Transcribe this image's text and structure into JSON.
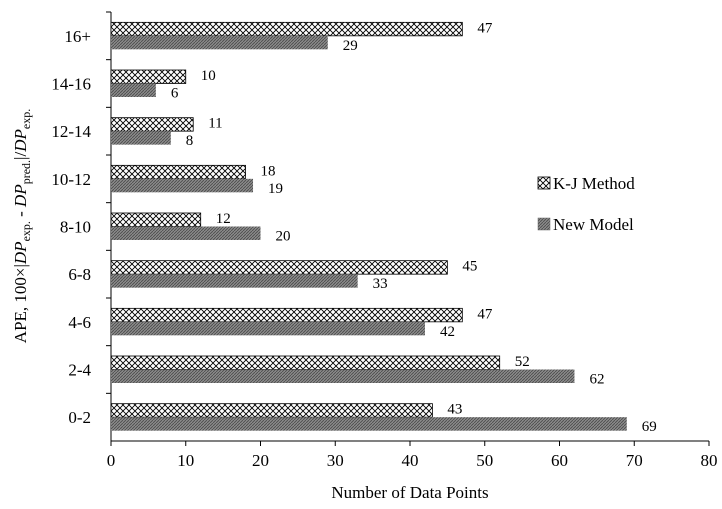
{
  "chart_data": {
    "type": "bar",
    "orientation": "horizontal",
    "categories": [
      "0-2",
      "2-4",
      "4-6",
      "6-8",
      "8-10",
      "10-12",
      "12-14",
      "14-16",
      "16+"
    ],
    "series": [
      {
        "name": "K-J Method",
        "values": [
          43,
          52,
          47,
          45,
          12,
          18,
          11,
          10,
          47
        ],
        "pattern": "crosshatch",
        "color": "#000000"
      },
      {
        "name": "New Model",
        "values": [
          69,
          62,
          42,
          33,
          20,
          19,
          8,
          6,
          29
        ],
        "pattern": "dense-diagonal",
        "color": "#7a7a7a"
      }
    ],
    "xlabel": "Number of Data Points",
    "ylabel": {
      "prefix": "APE, 100×|",
      "dp1": "DP",
      "dp1_sub": "exp.",
      "minus": " - ",
      "dp2": "DP",
      "dp2_sub": "pred.",
      "bar": "|/",
      "dp3": "DP",
      "dp3_sub": "exp."
    },
    "xlim": [
      0,
      80
    ],
    "xticks": [
      0,
      10,
      20,
      30,
      40,
      50,
      60,
      70,
      80
    ],
    "grid": false,
    "legend_position": "right"
  }
}
